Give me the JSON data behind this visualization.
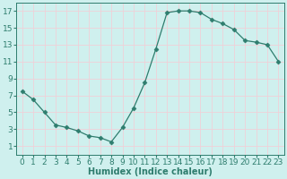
{
  "x": [
    0,
    1,
    2,
    3,
    4,
    5,
    6,
    7,
    8,
    9,
    10,
    11,
    12,
    13,
    14,
    15,
    16,
    17,
    18,
    19,
    20,
    21,
    22,
    23
  ],
  "y": [
    7.5,
    6.5,
    5.0,
    3.5,
    3.2,
    2.8,
    2.2,
    2.0,
    1.5,
    3.2,
    5.5,
    8.5,
    12.5,
    16.8,
    17.0,
    17.0,
    16.8,
    16.0,
    15.5,
    14.8,
    13.5,
    13.3,
    13.0,
    11.0
  ],
  "line_color": "#2e7d6e",
  "marker": "D",
  "marker_size": 2.5,
  "bg_color": "#cff0ee",
  "grid_color_major": "#f0d0d8",
  "grid_color_minor": "#f0d0d8",
  "xlabel": "Humidex (Indice chaleur)",
  "xlim": [
    -0.5,
    23.5
  ],
  "ylim": [
    0,
    18
  ],
  "xticks": [
    0,
    1,
    2,
    3,
    4,
    5,
    6,
    7,
    8,
    9,
    10,
    11,
    12,
    13,
    14,
    15,
    16,
    17,
    18,
    19,
    20,
    21,
    22,
    23
  ],
  "yticks": [
    1,
    3,
    5,
    7,
    9,
    11,
    13,
    15,
    17
  ],
  "xlabel_fontsize": 7,
  "tick_fontsize": 6.5
}
